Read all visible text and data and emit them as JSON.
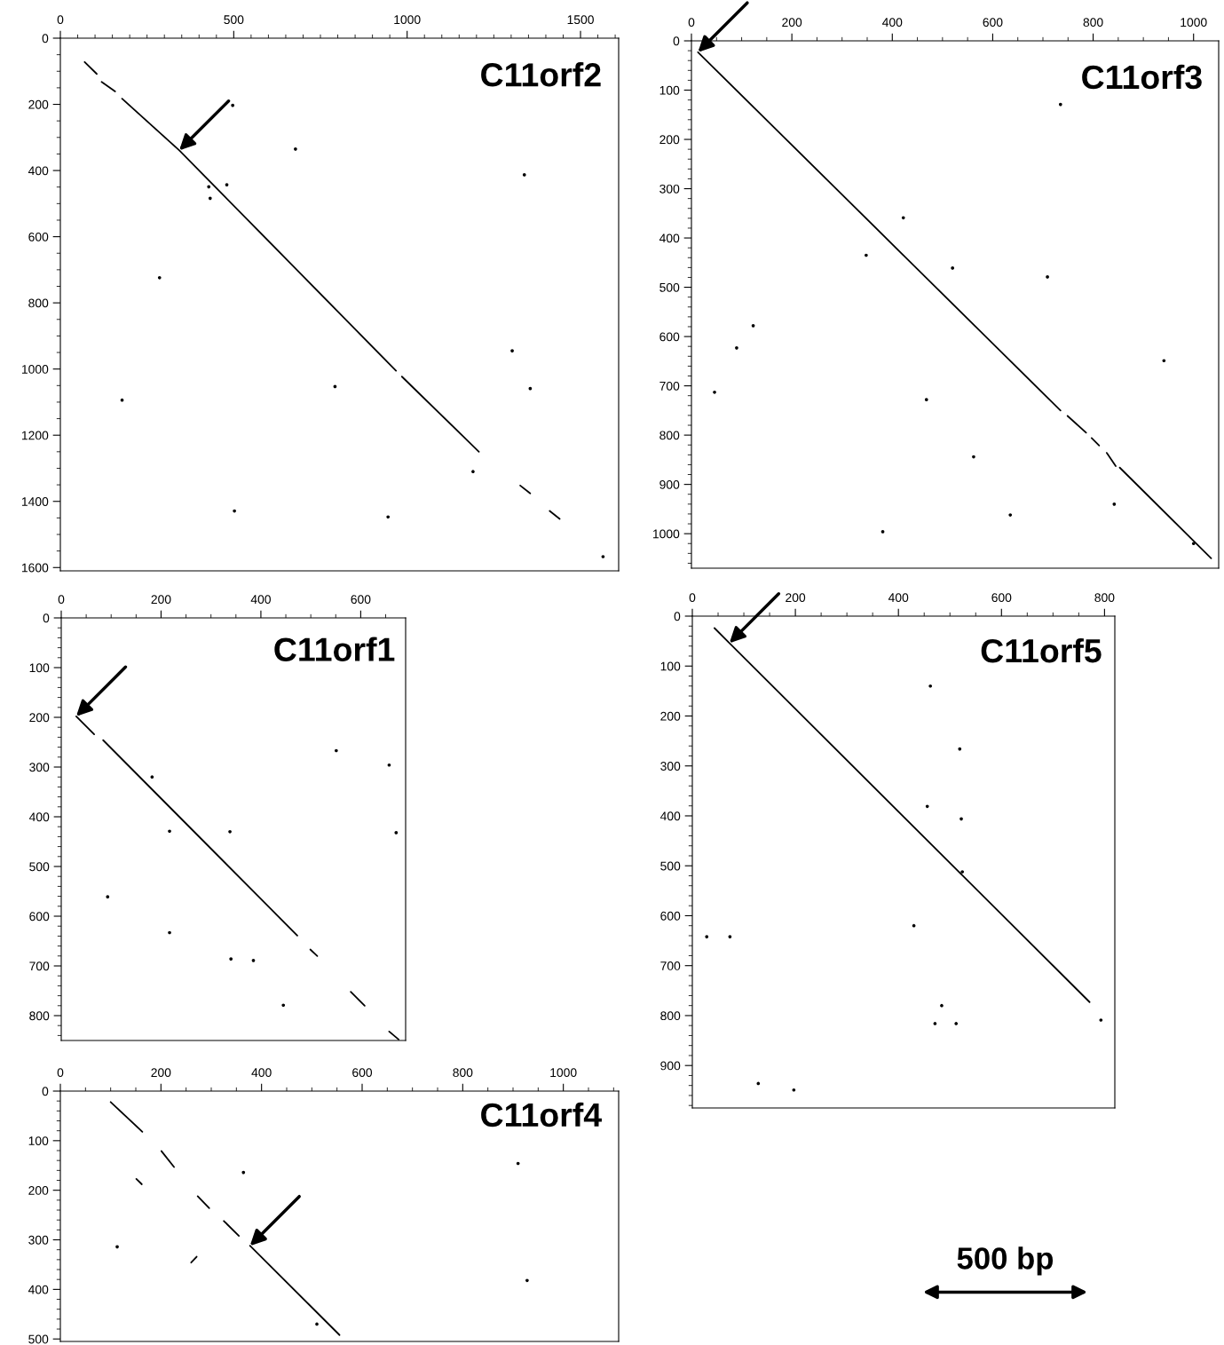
{
  "chart_data": [
    {
      "type": "line",
      "title": "C11orf2",
      "xlim": [
        0,
        1610
      ],
      "ylim": [
        1610,
        0
      ],
      "xticks": [
        0,
        {
          "value": 50,
          "label": null
        },
        {
          "value": 100,
          "label": null
        },
        {
          "value": 150,
          "label": null
        },
        {
          "value": 200,
          "label": null
        },
        {
          "value": 250,
          "label": null
        },
        {
          "value": 300,
          "label": null
        },
        {
          "value": 350,
          "label": null
        },
        {
          "value": 400,
          "label": null
        },
        {
          "value": 450,
          "label": null
        },
        500,
        {
          "value": 550,
          "label": null
        },
        {
          "value": 600,
          "label": null
        },
        {
          "value": 650,
          "label": null
        },
        {
          "value": 700,
          "label": null
        },
        {
          "value": 750,
          "label": null
        },
        {
          "value": 800,
          "label": null
        },
        {
          "value": 850,
          "label": null
        },
        {
          "value": 900,
          "label": null
        },
        {
          "value": 950,
          "label": null
        },
        1000,
        {
          "value": 1050,
          "label": null
        },
        {
          "value": 1100,
          "label": null
        },
        {
          "value": 1150,
          "label": null
        },
        {
          "value": 1200,
          "label": null
        },
        {
          "value": 1250,
          "label": null
        },
        {
          "value": 1300,
          "label": null
        },
        {
          "value": 1350,
          "label": null
        },
        {
          "value": 1400,
          "label": null
        },
        {
          "value": 1450,
          "label": null
        },
        1500,
        {
          "value": 1550,
          "label": null
        },
        {
          "value": 1600,
          "label": null
        }
      ],
      "yticks": [
        0,
        {
          "value": 50,
          "label": null
        },
        {
          "value": 100,
          "label": null
        },
        {
          "value": 150,
          "label": null
        },
        200,
        {
          "value": 250,
          "label": null
        },
        {
          "value": 300,
          "label": null
        },
        {
          "value": 350,
          "label": null
        },
        400,
        {
          "value": 450,
          "label": null
        },
        {
          "value": 500,
          "label": null
        },
        {
          "value": 550,
          "label": null
        },
        600,
        {
          "value": 650,
          "label": null
        },
        {
          "value": 700,
          "label": null
        },
        {
          "value": 750,
          "label": null
        },
        800,
        {
          "value": 850,
          "label": null
        },
        {
          "value": 900,
          "label": null
        },
        {
          "value": 950,
          "label": null
        },
        1000,
        {
          "value": 1050,
          "label": null
        },
        {
          "value": 1100,
          "label": null
        },
        {
          "value": 1150,
          "label": null
        },
        1200,
        {
          "value": 1250,
          "label": null
        },
        {
          "value": 1300,
          "label": null
        },
        {
          "value": 1350,
          "label": null
        },
        1400,
        {
          "value": 1450,
          "label": null
        },
        {
          "value": 1500,
          "label": null
        },
        {
          "value": 1550,
          "label": null
        },
        1600
      ],
      "series": [
        {
          "type": "line",
          "color": "#000000",
          "x": [
            178,
            343,
            968
          ],
          "values": [
            183,
            339,
            1005
          ]
        },
        {
          "type": "line",
          "color": "#000000",
          "x": [
            70,
            105
          ],
          "values": [
            72,
            108
          ]
        },
        {
          "type": "line",
          "color": "#000000",
          "x": [
            119,
            158
          ],
          "values": [
            132,
            161
          ]
        },
        {
          "type": "line",
          "color": "#000000",
          "x": [
            985,
            1207
          ],
          "values": [
            1023,
            1250
          ]
        },
        {
          "type": "line",
          "color": "#000000",
          "x": [
            1326,
            1355
          ],
          "values": [
            1352,
            1376
          ]
        },
        {
          "type": "line",
          "color": "#000000",
          "x": [
            1411,
            1440
          ],
          "values": [
            1429,
            1453
          ]
        },
        {
          "type": "scatter",
          "marker": "circle",
          "color": "#000000",
          "x": [
            286,
            678,
            428,
            432,
            480,
            178,
            1355,
            1338,
            1303,
            945,
            1565,
            497,
            1190,
            502,
            792
          ],
          "values": [
            724,
            335,
            449,
            484,
            443,
            1094,
            1059,
            413,
            945,
            1447,
            1567,
            203,
            1310,
            1429,
            1053
          ]
        }
      ]
    },
    {
      "type": "line",
      "title": "C11orf3",
      "xlim": [
        0,
        1050
      ],
      "ylim": [
        1070,
        0
      ],
      "xticks": [
        0,
        {
          "value": 50,
          "label": null
        },
        {
          "value": 100,
          "label": null
        },
        {
          "value": 150,
          "label": null
        },
        200,
        {
          "value": 250,
          "label": null
        },
        {
          "value": 300,
          "label": null
        },
        {
          "value": 350,
          "label": null
        },
        400,
        {
          "value": 450,
          "label": null
        },
        {
          "value": 500,
          "label": null
        },
        {
          "value": 550,
          "label": null
        },
        600,
        {
          "value": 650,
          "label": null
        },
        {
          "value": 700,
          "label": null
        },
        {
          "value": 750,
          "label": null
        },
        800,
        {
          "value": 850,
          "label": null
        },
        {
          "value": 900,
          "label": null
        },
        {
          "value": 950,
          "label": null
        },
        1000
      ],
      "yticks": [
        0,
        {
          "value": 20,
          "label": null
        },
        {
          "value": 40,
          "label": null
        },
        {
          "value": 60,
          "label": null
        },
        {
          "value": 80,
          "label": null
        },
        100,
        {
          "value": 120,
          "label": null
        },
        {
          "value": 140,
          "label": null
        },
        {
          "value": 160,
          "label": null
        },
        {
          "value": 180,
          "label": null
        },
        200,
        {
          "value": 220,
          "label": null
        },
        {
          "value": 240,
          "label": null
        },
        {
          "value": 260,
          "label": null
        },
        {
          "value": 280,
          "label": null
        },
        300,
        {
          "value": 320,
          "label": null
        },
        {
          "value": 340,
          "label": null
        },
        {
          "value": 360,
          "label": null
        },
        {
          "value": 380,
          "label": null
        },
        400,
        {
          "value": 420,
          "label": null
        },
        {
          "value": 440,
          "label": null
        },
        {
          "value": 460,
          "label": null
        },
        {
          "value": 480,
          "label": null
        },
        500,
        {
          "value": 520,
          "label": null
        },
        {
          "value": 540,
          "label": null
        },
        {
          "value": 560,
          "label": null
        },
        {
          "value": 580,
          "label": null
        },
        600,
        {
          "value": 620,
          "label": null
        },
        {
          "value": 640,
          "label": null
        },
        {
          "value": 660,
          "label": null
        },
        {
          "value": 680,
          "label": null
        },
        700,
        {
          "value": 720,
          "label": null
        },
        {
          "value": 740,
          "label": null
        },
        {
          "value": 760,
          "label": null
        },
        {
          "value": 780,
          "label": null
        },
        800,
        {
          "value": 820,
          "label": null
        },
        {
          "value": 840,
          "label": null
        },
        {
          "value": 860,
          "label": null
        },
        {
          "value": 880,
          "label": null
        },
        900,
        {
          "value": 920,
          "label": null
        },
        {
          "value": 940,
          "label": null
        },
        {
          "value": 960,
          "label": null
        },
        {
          "value": 980,
          "label": null
        },
        1000,
        {
          "value": 1020,
          "label": null
        },
        {
          "value": 1040,
          "label": null
        },
        {
          "value": 1060,
          "label": null
        }
      ],
      "series": [
        {
          "type": "line",
          "color": "#000000",
          "x": [
            13,
            735
          ],
          "values": [
            23,
            750
          ]
        },
        {
          "type": "line",
          "color": "#000000",
          "x": [
            749,
            786
          ],
          "values": [
            761,
            795
          ]
        },
        {
          "type": "line",
          "color": "#000000",
          "x": [
            797,
            812
          ],
          "values": [
            806,
            821
          ]
        },
        {
          "type": "line",
          "color": "#000000",
          "x": [
            827,
            845
          ],
          "values": [
            836,
            863
          ]
        },
        {
          "type": "line",
          "color": "#000000",
          "x": [
            853,
            1035
          ],
          "values": [
            866,
            1050
          ]
        },
        {
          "type": "scatter",
          "marker": "circle",
          "color": "#000000",
          "x": [
            422,
            348,
            520,
            709,
            735,
            46,
            468,
            941,
            562,
            635,
            381,
            1000,
            123,
            90,
            842
          ],
          "values": [
            359,
            435,
            461,
            479,
            129,
            713,
            728,
            649,
            844,
            962,
            996,
            1020,
            578,
            623,
            940
          ]
        }
      ]
    },
    {
      "type": "line",
      "title": "C11orf1",
      "xlim": [
        0,
        690
      ],
      "ylim": [
        850,
        0
      ],
      "xticks": [
        0,
        {
          "value": 50,
          "label": null
        },
        {
          "value": 100,
          "label": null
        },
        {
          "value": 150,
          "label": null
        },
        200,
        {
          "value": 250,
          "label": null
        },
        {
          "value": 300,
          "label": null
        },
        {
          "value": 350,
          "label": null
        },
        400,
        {
          "value": 450,
          "label": null
        },
        {
          "value": 500,
          "label": null
        },
        {
          "value": 550,
          "label": null
        },
        600,
        {
          "value": 650,
          "label": null
        }
      ],
      "yticks": [
        0,
        {
          "value": 20,
          "label": null
        },
        {
          "value": 40,
          "label": null
        },
        {
          "value": 60,
          "label": null
        },
        {
          "value": 80,
          "label": null
        },
        100,
        {
          "value": 120,
          "label": null
        },
        {
          "value": 140,
          "label": null
        },
        {
          "value": 160,
          "label": null
        },
        {
          "value": 180,
          "label": null
        },
        200,
        {
          "value": 220,
          "label": null
        },
        {
          "value": 240,
          "label": null
        },
        {
          "value": 260,
          "label": null
        },
        {
          "value": 280,
          "label": null
        },
        300,
        {
          "value": 320,
          "label": null
        },
        {
          "value": 340,
          "label": null
        },
        {
          "value": 360,
          "label": null
        },
        {
          "value": 380,
          "label": null
        },
        400,
        {
          "value": 420,
          "label": null
        },
        {
          "value": 440,
          "label": null
        },
        {
          "value": 460,
          "label": null
        },
        {
          "value": 480,
          "label": null
        },
        500,
        {
          "value": 520,
          "label": null
        },
        {
          "value": 540,
          "label": null
        },
        {
          "value": 560,
          "label": null
        },
        {
          "value": 580,
          "label": null
        },
        600,
        {
          "value": 620,
          "label": null
        },
        {
          "value": 640,
          "label": null
        },
        {
          "value": 660,
          "label": null
        },
        {
          "value": 680,
          "label": null
        },
        700,
        {
          "value": 720,
          "label": null
        },
        {
          "value": 740,
          "label": null
        },
        {
          "value": 760,
          "label": null
        },
        {
          "value": 780,
          "label": null
        },
        800,
        {
          "value": 820,
          "label": null
        },
        {
          "value": 840,
          "label": null
        }
      ],
      "series": [
        {
          "type": "line",
          "color": "#000000",
          "x": [
            30,
            66
          ],
          "values": [
            198,
            234
          ]
        },
        {
          "type": "line",
          "color": "#000000",
          "x": [
            84,
            473
          ],
          "values": [
            246,
            639
          ]
        },
        {
          "type": "line",
          "color": "#000000",
          "x": [
            499,
            513
          ],
          "values": [
            667,
            680
          ]
        },
        {
          "type": "line",
          "color": "#000000",
          "x": [
            580,
            608
          ],
          "values": [
            752,
            780
          ]
        },
        {
          "type": "line",
          "color": "#000000",
          "x": [
            657,
            676
          ],
          "values": [
            832,
            848
          ]
        },
        {
          "type": "scatter",
          "marker": "circle",
          "color": "#000000",
          "x": [
            551,
            657,
            338,
            93,
            217,
            340,
            385,
            445,
            671,
            217,
            182
          ],
          "values": [
            267,
            296,
            430,
            561,
            633,
            686,
            689,
            779,
            432,
            429,
            320
          ]
        }
      ]
    },
    {
      "type": "line",
      "title": "C11orf5",
      "xlim": [
        0,
        820
      ],
      "ylim": [
        985,
        0
      ],
      "xticks": [
        0,
        {
          "value": 50,
          "label": null
        },
        {
          "value": 100,
          "label": null
        },
        {
          "value": 150,
          "label": null
        },
        200,
        {
          "value": 250,
          "label": null
        },
        {
          "value": 300,
          "label": null
        },
        {
          "value": 350,
          "label": null
        },
        400,
        {
          "value": 450,
          "label": null
        },
        {
          "value": 500,
          "label": null
        },
        {
          "value": 550,
          "label": null
        },
        600,
        {
          "value": 650,
          "label": null
        },
        {
          "value": 700,
          "label": null
        },
        {
          "value": 750,
          "label": null
        },
        800
      ],
      "yticks": [
        0,
        {
          "value": 20,
          "label": null
        },
        {
          "value": 40,
          "label": null
        },
        {
          "value": 60,
          "label": null
        },
        {
          "value": 80,
          "label": null
        },
        100,
        {
          "value": 120,
          "label": null
        },
        {
          "value": 140,
          "label": null
        },
        {
          "value": 160,
          "label": null
        },
        {
          "value": 180,
          "label": null
        },
        200,
        {
          "value": 220,
          "label": null
        },
        {
          "value": 240,
          "label": null
        },
        {
          "value": 260,
          "label": null
        },
        {
          "value": 280,
          "label": null
        },
        300,
        {
          "value": 320,
          "label": null
        },
        {
          "value": 340,
          "label": null
        },
        {
          "value": 360,
          "label": null
        },
        {
          "value": 380,
          "label": null
        },
        400,
        {
          "value": 420,
          "label": null
        },
        {
          "value": 440,
          "label": null
        },
        {
          "value": 460,
          "label": null
        },
        {
          "value": 480,
          "label": null
        },
        500,
        {
          "value": 520,
          "label": null
        },
        {
          "value": 540,
          "label": null
        },
        {
          "value": 560,
          "label": null
        },
        {
          "value": 580,
          "label": null
        },
        600,
        {
          "value": 620,
          "label": null
        },
        {
          "value": 640,
          "label": null
        },
        {
          "value": 660,
          "label": null
        },
        {
          "value": 680,
          "label": null
        },
        700,
        {
          "value": 720,
          "label": null
        },
        {
          "value": 740,
          "label": null
        },
        {
          "value": 760,
          "label": null
        },
        {
          "value": 780,
          "label": null
        },
        800,
        {
          "value": 820,
          "label": null
        },
        {
          "value": 840,
          "label": null
        },
        {
          "value": 860,
          "label": null
        },
        {
          "value": 880,
          "label": null
        },
        900,
        {
          "value": 920,
          "label": null
        },
        {
          "value": 940,
          "label": null
        },
        {
          "value": 960,
          "label": null
        },
        {
          "value": 980,
          "label": null
        }
      ],
      "series": [
        {
          "type": "line",
          "color": "#000000",
          "x": [
            43,
            72,
            771
          ],
          "values": [
            24,
            54,
            773
          ]
        },
        {
          "type": "scatter",
          "marker": "circle",
          "color": "#000000",
          "x": [
            462,
            522,
            73,
            28,
            456,
            484,
            512,
            793,
            471,
            197,
            128,
            430,
            524,
            519
          ],
          "values": [
            140,
            406,
            642,
            642,
            381,
            780,
            816,
            809,
            816,
            949,
            936,
            620,
            512,
            266
          ]
        }
      ]
    },
    {
      "type": "line",
      "title": "C11orf4",
      "xlim": [
        0,
        1110
      ],
      "ylim": [
        505,
        0
      ],
      "xticks": [
        0,
        {
          "value": 50,
          "label": null
        },
        {
          "value": 100,
          "label": null
        },
        {
          "value": 150,
          "label": null
        },
        200,
        {
          "value": 250,
          "label": null
        },
        {
          "value": 300,
          "label": null
        },
        {
          "value": 350,
          "label": null
        },
        400,
        {
          "value": 450,
          "label": null
        },
        {
          "value": 500,
          "label": null
        },
        {
          "value": 550,
          "label": null
        },
        600,
        {
          "value": 650,
          "label": null
        },
        {
          "value": 700,
          "label": null
        },
        {
          "value": 750,
          "label": null
        },
        800,
        {
          "value": 850,
          "label": null
        },
        {
          "value": 900,
          "label": null
        },
        {
          "value": 950,
          "label": null
        },
        1000,
        {
          "value": 1050,
          "label": null
        },
        {
          "value": 1100,
          "label": null
        }
      ],
      "yticks": [
        0,
        {
          "value": 20,
          "label": null
        },
        {
          "value": 40,
          "label": null
        },
        {
          "value": 60,
          "label": null
        },
        {
          "value": 80,
          "label": null
        },
        100,
        {
          "value": 120,
          "label": null
        },
        {
          "value": 140,
          "label": null
        },
        {
          "value": 160,
          "label": null
        },
        {
          "value": 180,
          "label": null
        },
        200,
        {
          "value": 220,
          "label": null
        },
        {
          "value": 240,
          "label": null
        },
        {
          "value": 260,
          "label": null
        },
        {
          "value": 280,
          "label": null
        },
        300,
        {
          "value": 320,
          "label": null
        },
        {
          "value": 340,
          "label": null
        },
        {
          "value": 360,
          "label": null
        },
        {
          "value": 380,
          "label": null
        },
        400,
        {
          "value": 420,
          "label": null
        },
        {
          "value": 440,
          "label": null
        },
        {
          "value": 460,
          "label": null
        },
        {
          "value": 480,
          "label": null
        },
        500
      ],
      "series": [
        {
          "type": "line",
          "color": "#000000",
          "x": [
            377,
            555
          ],
          "values": [
            312,
            492
          ]
        },
        {
          "type": "line",
          "color": "#000000",
          "x": [
            100,
            163
          ],
          "values": [
            22,
            82
          ]
        },
        {
          "type": "line",
          "color": "#000000",
          "x": [
            201,
            226
          ],
          "values": [
            121,
            153
          ]
        },
        {
          "type": "line",
          "color": "#000000",
          "x": [
            273,
            296
          ],
          "values": [
            212,
            236
          ]
        },
        {
          "type": "line",
          "color": "#000000",
          "x": [
            325,
            355
          ],
          "values": [
            262,
            292
          ]
        },
        {
          "type": "line",
          "color": "#000000",
          "x": [
            151,
            162
          ],
          "values": [
            177,
            188
          ]
        },
        {
          "type": "line",
          "color": "#000000",
          "x": [
            260,
            271
          ],
          "values": [
            346,
            334
          ]
        },
        {
          "type": "scatter",
          "marker": "circle",
          "color": "#000000",
          "x": [
            928,
            113,
            364,
            510,
            910
          ],
          "values": [
            382,
            314,
            164,
            470,
            146
          ]
        }
      ]
    },
    {
      "type": "other",
      "annotations": [
        "500 bp"
      ]
    }
  ]
}
